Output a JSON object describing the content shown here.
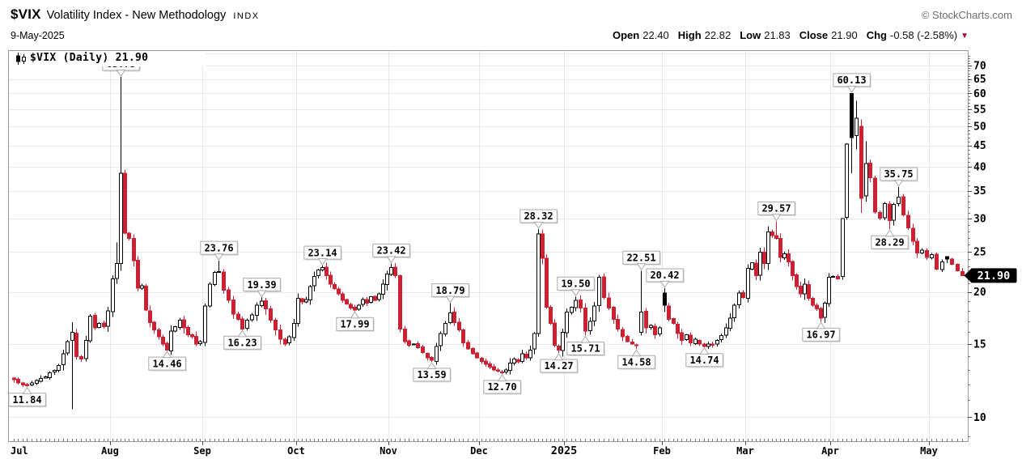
{
  "header": {
    "symbol": "$VIX",
    "name": "Volatility Index - New Methodology",
    "exchange": "INDX",
    "date": "9-May-2025",
    "copyright": "© StockCharts.com",
    "quote": {
      "open_label": "Open",
      "open": "22.40",
      "high_label": "High",
      "high": "22.82",
      "low_label": "Low",
      "low": "21.83",
      "close_label": "Close",
      "close": "21.90",
      "chg_label": "Chg",
      "chg": "-0.58 (-2.58%)",
      "direction_icon": "▼"
    }
  },
  "legend": {
    "text": "$VIX (Daily) 21.90"
  },
  "last_price_tag": "21.90",
  "colors": {
    "up_fill": "#ffffff",
    "down": "#cc2133",
    "outline": "#000000",
    "grid": "#e8e8e8",
    "axis_line": "#999999",
    "tick": "#777777",
    "label": "#000000",
    "callout_border": "#aaaaaa",
    "callout_bg": "#ffffff",
    "callout_shadow": "#999999",
    "tag_bg": "#000000",
    "tag_text": "#ffffff",
    "chg_arrow": "#9e1335"
  },
  "chart_data": {
    "type": "candlestick",
    "scale": "log",
    "period": "Daily",
    "symbol": "$VIX",
    "y_axis": {
      "ticks": [
        70,
        65,
        60,
        55,
        50,
        45,
        40,
        35,
        30,
        25,
        20,
        15,
        10
      ],
      "unlabeled_grid": [
        75
      ],
      "minor_tick_step": 1
    },
    "x_months": [
      {
        "label": "Jul",
        "days": 22
      },
      {
        "label": "Aug",
        "days": 22
      },
      {
        "label": "Sep",
        "days": 20
      },
      {
        "label": "Oct",
        "days": 23
      },
      {
        "label": "Nov",
        "days": 20
      },
      {
        "label": "Dec",
        "days": 21
      },
      {
        "label": "2025",
        "days": 21,
        "year": true
      },
      {
        "label": "Feb",
        "days": 19
      },
      {
        "label": "Mar",
        "days": 21
      },
      {
        "label": "Apr",
        "days": 21
      },
      {
        "label": "May",
        "days": 7
      }
    ],
    "closes": [
      12.3,
      12.1,
      11.95,
      11.9,
      12.1,
      12.25,
      12.4,
      12.5,
      12.8,
      12.95,
      13.3,
      14.2,
      15.2,
      16.0,
      14.0,
      13.8,
      15.3,
      17.5,
      16.4,
      16.8,
      16.5,
      18.0,
      21.5,
      23.4,
      38.6,
      27.7,
      26.9,
      23.8,
      20.4,
      20.7,
      18.1,
      16.9,
      16.2,
      15.6,
      15.0,
      14.5,
      16.1,
      16.5,
      17.1,
      16.4,
      15.8,
      15.6,
      15.0,
      15.2,
      18.5,
      20.9,
      22.3,
      22.4,
      20.2,
      19.1,
      17.7,
      17.2,
      16.3,
      17.1,
      17.6,
      18.6,
      19.0,
      18.2,
      17.1,
      16.2,
      15.4,
      15.0,
      15.6,
      16.8,
      19.3,
      18.9,
      19.2,
      20.6,
      21.8,
      22.6,
      22.9,
      21.9,
      20.9,
      20.4,
      19.8,
      19.1,
      18.7,
      18.3,
      18.1,
      18.6,
      19.2,
      18.8,
      19.5,
      19.1,
      19.8,
      20.9,
      22.1,
      22.9,
      21.9,
      16.3,
      15.2,
      14.9,
      15.0,
      14.7,
      14.3,
      13.9,
      13.7,
      14.8,
      15.9,
      16.8,
      17.8,
      16.9,
      16.2,
      15.1,
      14.6,
      14.2,
      13.9,
      13.6,
      13.4,
      13.2,
      13.0,
      12.9,
      12.8,
      13.0,
      13.5,
      13.8,
      13.6,
      14.2,
      13.9,
      14.5,
      15.9,
      27.6,
      24.1,
      18.4,
      16.8,
      14.9,
      14.5,
      16.0,
      17.9,
      18.4,
      19.1,
      18.3,
      16.1,
      17.0,
      18.5,
      21.7,
      19.4,
      18.3,
      17.2,
      16.3,
      15.6,
      15.2,
      15.0,
      14.9,
      17.9,
      16.4,
      16.6,
      15.8,
      16.4,
      18.6,
      17.2,
      16.8,
      15.9,
      15.3,
      15.8,
      15.1,
      15.4,
      15.0,
      14.8,
      15.0,
      14.9,
      15.3,
      15.7,
      16.4,
      17.3,
      18.6,
      19.9,
      19.4,
      22.8,
      23.5,
      21.9,
      24.9,
      23.4,
      27.9,
      27.3,
      26.9,
      24.2,
      24.7,
      23.6,
      21.9,
      20.6,
      19.8,
      20.9,
      19.3,
      18.6,
      18.2,
      17.3,
      18.8,
      21.7,
      21.8,
      21.5,
      30.0,
      45.3,
      47.0,
      52.3,
      33.6,
      40.7,
      37.6,
      31.1,
      30.1,
      32.6,
      29.7,
      32.5,
      33.8,
      30.6,
      28.5,
      26.5,
      24.8,
      25.2,
      24.2,
      24.6,
      22.7,
      23.6,
      24.0,
      23.3,
      22.5,
      21.9
    ],
    "overrides": {
      "3": {
        "l": 11.84
      },
      "13": {
        "o": 15.3,
        "h": 16.9,
        "l": 10.45,
        "c": 16.0
      },
      "23": {
        "h": 26.3
      },
      "24": {
        "o": 23.4,
        "h": 65.73,
        "l": 22.5,
        "c": 38.6
      },
      "35": {
        "l": 14.46
      },
      "47": {
        "h": 23.76
      },
      "52": {
        "l": 16.23
      },
      "56": {
        "h": 19.39
      },
      "70": {
        "h": 23.14
      },
      "78": {
        "l": 17.99
      },
      "87": {
        "h": 23.42
      },
      "96": {
        "l": 13.59
      },
      "100": {
        "h": 18.79
      },
      "112": {
        "l": 12.7
      },
      "121": {
        "o": 15.9,
        "h": 28.32,
        "l": 15.6,
        "c": 27.6
      },
      "126": {
        "l": 14.27
      },
      "130": {
        "h": 19.5
      },
      "132": {
        "l": 15.71
      },
      "135": {
        "h": 22.0
      },
      "143": {
        "l": 14.58
      },
      "144": {
        "o": 16.0,
        "h": 22.51,
        "l": 15.7,
        "c": 17.9
      },
      "149": {
        "o": 19.9,
        "h": 20.42,
        "l": 17.9,
        "c": 18.6
      },
      "158": {
        "l": 14.74
      },
      "175": {
        "h": 29.57
      },
      "186": {
        "l": 16.97
      },
      "191": {
        "o": 21.8,
        "h": 30.1,
        "l": 21.4,
        "c": 30.0
      },
      "192": {
        "o": 30.2,
        "h": 45.5,
        "l": 29.8,
        "c": 45.3
      },
      "193": {
        "o": 60.0,
        "h": 60.13,
        "l": 38.6,
        "c": 47.0
      },
      "194": {
        "o": 47.5,
        "h": 57.6,
        "l": 44.0,
        "c": 52.3
      },
      "195": {
        "o": 50.0,
        "h": 52.0,
        "l": 31.0,
        "c": 33.6
      },
      "196": {
        "o": 34.0,
        "h": 46.0,
        "l": 33.0,
        "c": 40.7
      },
      "201": {
        "l": 28.29
      },
      "203": {
        "h": 35.75
      },
      "213": {
        "o": 24.3
      },
      "216": {
        "o": 22.4,
        "h": 22.82,
        "l": 21.83,
        "c": 21.9
      }
    },
    "annotations": [
      {
        "value": "65.73",
        "index": 24,
        "side": "above",
        "obscured": true
      },
      {
        "value": "11.84",
        "index": 3,
        "side": "below"
      },
      {
        "value": "14.46",
        "index": 35,
        "side": "below"
      },
      {
        "value": "23.76",
        "index": 47,
        "side": "above"
      },
      {
        "value": "16.23",
        "index": 52,
        "side": "below"
      },
      {
        "value": "19.39",
        "index": 56,
        "side": "above"
      },
      {
        "value": "23.14",
        "index": 70,
        "side": "above"
      },
      {
        "value": "17.99",
        "index": 78,
        "side": "below"
      },
      {
        "value": "23.42",
        "index": 87,
        "side": "above"
      },
      {
        "value": "13.59",
        "index": 96,
        "side": "below"
      },
      {
        "value": "18.79",
        "index": 100,
        "side": "above"
      },
      {
        "value": "12.70",
        "index": 112,
        "side": "below"
      },
      {
        "value": "28.32",
        "index": 121,
        "side": "above"
      },
      {
        "value": "14.27",
        "index": 126,
        "side": "below"
      },
      {
        "value": "19.50",
        "index": 130,
        "side": "above"
      },
      {
        "value": "15.71",
        "index": 132,
        "side": "below"
      },
      {
        "value": "14.58",
        "index": 143,
        "side": "below"
      },
      {
        "value": "22.51",
        "index": 144,
        "side": "above"
      },
      {
        "value": "20.42",
        "index": 149,
        "side": "above"
      },
      {
        "value": "14.74",
        "index": 158,
        "side": "below"
      },
      {
        "value": "29.57",
        "index": 175,
        "side": "above"
      },
      {
        "value": "16.97",
        "index": 186,
        "side": "below"
      },
      {
        "value": "60.13",
        "index": 193,
        "side": "above"
      },
      {
        "value": "28.29",
        "index": 201,
        "side": "below"
      },
      {
        "value": "35.75",
        "index": 203,
        "side": "above"
      }
    ]
  }
}
